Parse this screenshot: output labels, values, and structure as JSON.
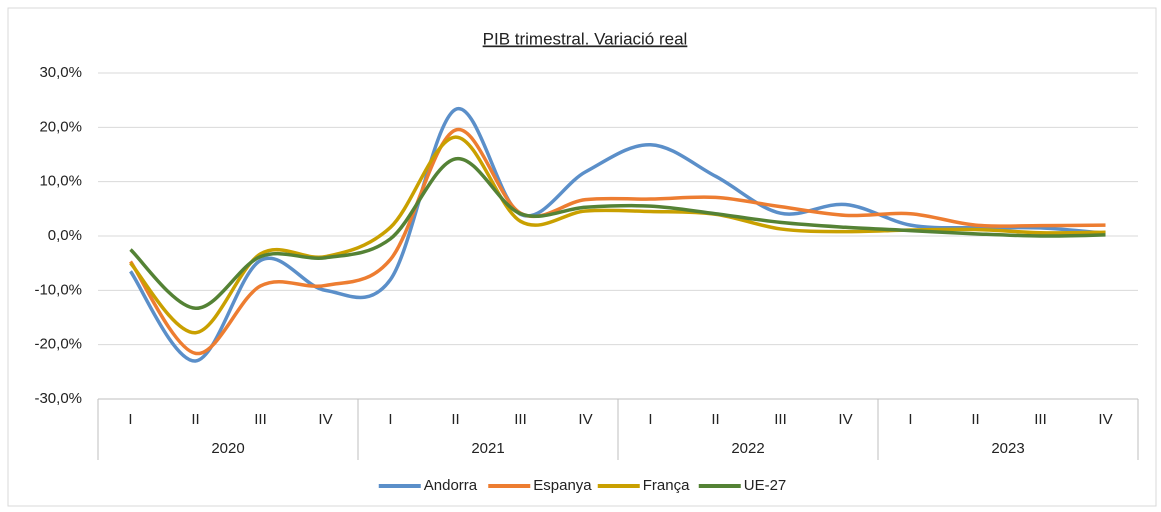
{
  "chart_data": {
    "type": "line",
    "title": "PIB trimestral. Variació real",
    "categories": [
      "I",
      "II",
      "III",
      "IV",
      "I",
      "II",
      "III",
      "IV",
      "I",
      "II",
      "III",
      "IV",
      "I",
      "II",
      "III",
      "IV"
    ],
    "category_groups": [
      "2020",
      "2021",
      "2022",
      "2023"
    ],
    "series": [
      {
        "name": "Andorra",
        "color": "#5b8fc9",
        "values": [
          -6.5,
          -23,
          -4.5,
          -10,
          -8,
          23.3,
          4,
          11.8,
          16.8,
          11,
          4.2,
          5.8,
          2,
          1.5,
          1.5,
          0.5
        ]
      },
      {
        "name": "Espanya",
        "color": "#ed7d31",
        "values": [
          -4.7,
          -21.6,
          -9.2,
          -9.1,
          -4.3,
          19.5,
          4.2,
          6.7,
          6.8,
          7.1,
          5.4,
          3.8,
          4.1,
          2.0,
          1.9,
          2.0
        ]
      },
      {
        "name": "França",
        "color": "#c9a000",
        "values": [
          -5.0,
          -17.8,
          -3.3,
          -3.8,
          1.6,
          18.2,
          2.7,
          4.6,
          4.5,
          4.0,
          1.3,
          0.8,
          1.1,
          1.2,
          0.6,
          0.7
        ]
      },
      {
        "name": "UE-27",
        "color": "#548235",
        "values": [
          -2.5,
          -13.3,
          -3.8,
          -4.0,
          -0.5,
          14.2,
          4.1,
          5.3,
          5.5,
          4.1,
          2.5,
          1.6,
          1.0,
          0.4,
          0.0,
          0.2
        ]
      }
    ],
    "ylim": [
      -30,
      30
    ],
    "yticks": [
      {
        "value": -30,
        "label": "-30,0%"
      },
      {
        "value": -20,
        "label": "-20,0%"
      },
      {
        "value": -10,
        "label": "-10,0%"
      },
      {
        "value": 0,
        "label": "0,0%"
      },
      {
        "value": 10,
        "label": "10,0%"
      },
      {
        "value": 20,
        "label": "20,0%"
      },
      {
        "value": 30,
        "label": "30,0%"
      }
    ],
    "grid": true,
    "smooth": true,
    "legend": "bottom"
  }
}
